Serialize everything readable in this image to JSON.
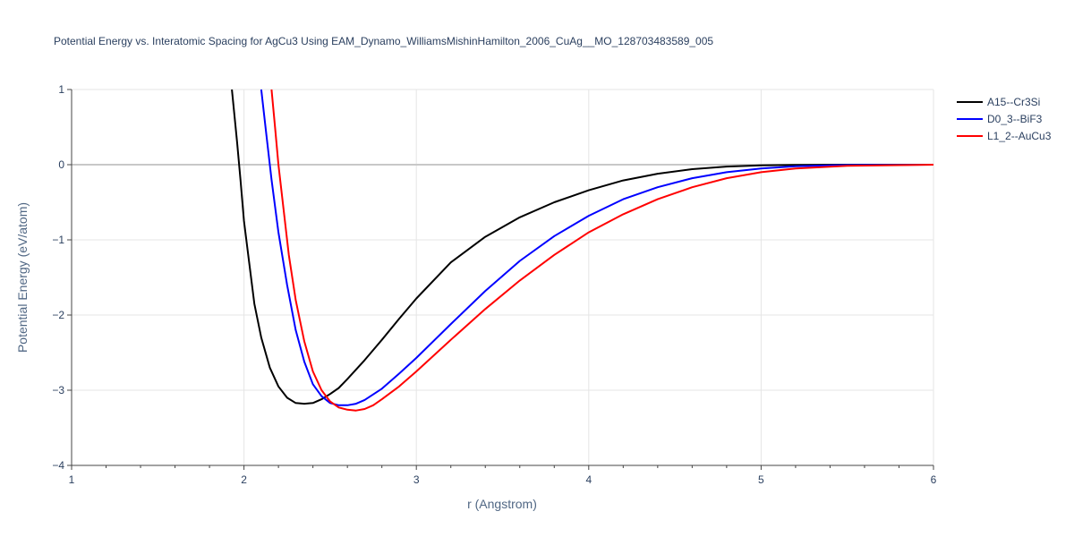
{
  "chart_data": {
    "type": "line",
    "title": "Potential Energy vs. Interatomic Spacing for AgCu3 Using EAM_Dynamo_WilliamsMishinHamilton_2006_CuAg__MO_128703483589_005",
    "xlabel": "r (Angstrom)",
    "ylabel": "Potential Energy (eV/atom)",
    "xlim": [
      1,
      6
    ],
    "ylim": [
      -4,
      1
    ],
    "xticks": [
      1,
      2,
      3,
      4,
      5,
      6
    ],
    "yticks": [
      1,
      0,
      -1,
      -2,
      -3,
      -4
    ],
    "ytick_labels": [
      "1",
      "0",
      "−1",
      "−2",
      "−3",
      "−4"
    ],
    "grid": true,
    "legend_position": "top-right",
    "series": [
      {
        "name": "A15--Cr3Si",
        "color": "#000000",
        "x": [
          1.93,
          1.96,
          1.98,
          2.0,
          2.03,
          2.06,
          2.1,
          2.15,
          2.2,
          2.25,
          2.3,
          2.35,
          2.4,
          2.45,
          2.5,
          2.55,
          2.6,
          2.7,
          2.8,
          2.9,
          3.0,
          3.2,
          3.4,
          3.6,
          3.8,
          4.0,
          4.2,
          4.4,
          4.6,
          4.8,
          5.0,
          5.2,
          5.5,
          6.0
        ],
        "y": [
          1.0,
          0.3,
          -0.2,
          -0.75,
          -1.3,
          -1.85,
          -2.3,
          -2.7,
          -2.95,
          -3.1,
          -3.17,
          -3.18,
          -3.17,
          -3.12,
          -3.05,
          -2.97,
          -2.85,
          -2.6,
          -2.33,
          -2.05,
          -1.78,
          -1.3,
          -0.96,
          -0.7,
          -0.5,
          -0.34,
          -0.21,
          -0.12,
          -0.06,
          -0.025,
          -0.01,
          -0.003,
          0.0,
          0.0
        ]
      },
      {
        "name": "D0_3--BiF3",
        "color": "#0000ff",
        "x": [
          2.1,
          2.13,
          2.16,
          2.2,
          2.25,
          2.3,
          2.35,
          2.4,
          2.45,
          2.5,
          2.55,
          2.6,
          2.65,
          2.7,
          2.8,
          2.9,
          3.0,
          3.2,
          3.4,
          3.6,
          3.8,
          4.0,
          4.2,
          4.4,
          4.6,
          4.8,
          5.0,
          5.2,
          5.5,
          6.0
        ],
        "y": [
          1.0,
          0.4,
          -0.2,
          -0.9,
          -1.6,
          -2.2,
          -2.62,
          -2.92,
          -3.08,
          -3.17,
          -3.2,
          -3.2,
          -3.18,
          -3.13,
          -2.98,
          -2.78,
          -2.57,
          -2.12,
          -1.68,
          -1.28,
          -0.95,
          -0.68,
          -0.46,
          -0.3,
          -0.18,
          -0.1,
          -0.05,
          -0.02,
          -0.005,
          0.0
        ]
      },
      {
        "name": "L1_2--AuCu3",
        "color": "#ff0000",
        "x": [
          2.16,
          2.18,
          2.2,
          2.23,
          2.26,
          2.3,
          2.35,
          2.4,
          2.45,
          2.5,
          2.55,
          2.6,
          2.65,
          2.7,
          2.75,
          2.8,
          2.9,
          3.0,
          3.2,
          3.4,
          3.6,
          3.8,
          4.0,
          4.2,
          4.4,
          4.6,
          4.8,
          5.0,
          5.2,
          5.5,
          6.0
        ],
        "y": [
          1.0,
          0.5,
          0.0,
          -0.6,
          -1.2,
          -1.8,
          -2.35,
          -2.75,
          -3.0,
          -3.15,
          -3.23,
          -3.26,
          -3.27,
          -3.25,
          -3.2,
          -3.12,
          -2.95,
          -2.75,
          -2.33,
          -1.92,
          -1.54,
          -1.2,
          -0.9,
          -0.66,
          -0.46,
          -0.3,
          -0.18,
          -0.1,
          -0.05,
          -0.015,
          0.0
        ]
      }
    ]
  }
}
